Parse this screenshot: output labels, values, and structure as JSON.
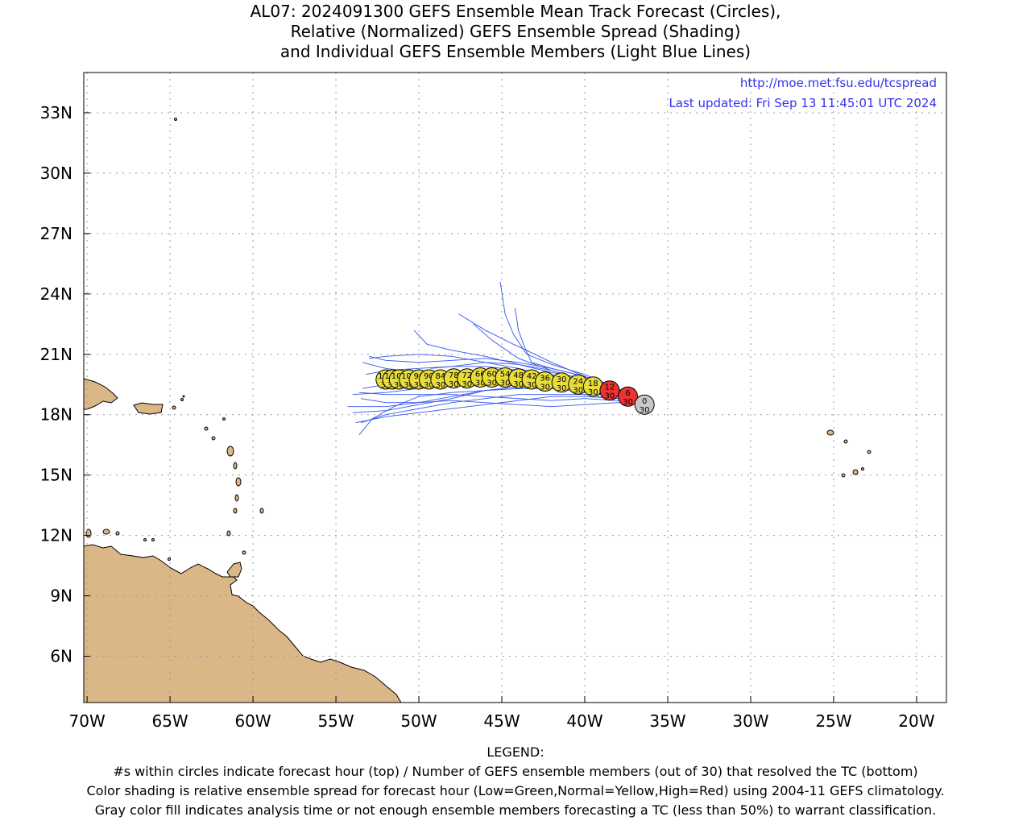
{
  "title_lines": [
    "AL07: 2024091300 GEFS Ensemble Mean Track Forecast (Circles),",
    "Relative (Normalized) GEFS Ensemble Spread (Shading)",
    "and Individual GEFS Ensemble Members (Light Blue Lines)"
  ],
  "url": "http://moe.met.fsu.edu/tcspread",
  "last_updated": "Last updated: Fri Sep 13 11:45:01 UTC 2024",
  "legend_lines": [
    "LEGEND:",
    "#s within circles indicate forecast hour (top) / Number of GEFS ensemble members (out of 30) that resolved the TC (bottom)",
    "Color shading is relative ensemble spread for forecast hour (Low=Green,Normal=Yellow,High=Red) using 2004-11 GEFS climatology.",
    "Gray color fill indicates analysis time or not enough ensemble members forecasting a TC (less than 50%) to warrant classification."
  ],
  "colors": {
    "land": "#dbb787",
    "member_line": "#3355ee",
    "gray_fill": "#c8c8c8",
    "red_fill": "#ee3333",
    "yellow_fill": "#e8dc3c",
    "url_text": "#3333ee"
  },
  "chart_data": {
    "type": "map",
    "xlim": [
      -70.2,
      -18.2
    ],
    "ylim": [
      3.7,
      35.0
    ],
    "x_ticks": [
      {
        "value": -70,
        "label": "70W"
      },
      {
        "value": -65,
        "label": "65W"
      },
      {
        "value": -60,
        "label": "60W"
      },
      {
        "value": -55,
        "label": "55W"
      },
      {
        "value": -50,
        "label": "50W"
      },
      {
        "value": -45,
        "label": "45W"
      },
      {
        "value": -40,
        "label": "40W"
      },
      {
        "value": -35,
        "label": "35W"
      },
      {
        "value": -30,
        "label": "30W"
      },
      {
        "value": -25,
        "label": "25W"
      },
      {
        "value": -20,
        "label": "20W"
      }
    ],
    "y_ticks": [
      {
        "value": 6,
        "label": "6N"
      },
      {
        "value": 9,
        "label": "9N"
      },
      {
        "value": 12,
        "label": "12N"
      },
      {
        "value": 15,
        "label": "15N"
      },
      {
        "value": 18,
        "label": "18N"
      },
      {
        "value": 21,
        "label": "21N"
      },
      {
        "value": 24,
        "label": "24N"
      },
      {
        "value": 27,
        "label": "27N"
      },
      {
        "value": 30,
        "label": "30N"
      },
      {
        "value": 33,
        "label": "33N"
      }
    ],
    "grid": true,
    "mean_track": [
      {
        "hour": "0",
        "members": "30",
        "lon": -36.4,
        "lat": 18.5,
        "fill": "gray"
      },
      {
        "hour": "6",
        "members": "30",
        "lon": -37.4,
        "lat": 18.9,
        "fill": "red"
      },
      {
        "hour": "12",
        "members": "30",
        "lon": -38.5,
        "lat": 19.2,
        "fill": "red"
      },
      {
        "hour": "18",
        "members": "30",
        "lon": -39.5,
        "lat": 19.4,
        "fill": "yellow"
      },
      {
        "hour": "24",
        "members": "30",
        "lon": -40.4,
        "lat": 19.5,
        "fill": "yellow"
      },
      {
        "hour": "30",
        "members": "30",
        "lon": -41.4,
        "lat": 19.6,
        "fill": "yellow"
      },
      {
        "hour": "36",
        "members": "30",
        "lon": -42.4,
        "lat": 19.65,
        "fill": "yellow"
      },
      {
        "hour": "42",
        "members": "30",
        "lon": -43.2,
        "lat": 19.75,
        "fill": "yellow"
      },
      {
        "hour": "48",
        "members": "30",
        "lon": -44.0,
        "lat": 19.8,
        "fill": "yellow"
      },
      {
        "hour": "54",
        "members": "30",
        "lon": -44.8,
        "lat": 19.85,
        "fill": "yellow"
      },
      {
        "hour": "60",
        "members": "30",
        "lon": -45.6,
        "lat": 19.85,
        "fill": "yellow"
      },
      {
        "hour": "66",
        "members": "30",
        "lon": -46.3,
        "lat": 19.85,
        "fill": "yellow"
      },
      {
        "hour": "72",
        "members": "30",
        "lon": -47.1,
        "lat": 19.8,
        "fill": "yellow"
      },
      {
        "hour": "78",
        "members": "30",
        "lon": -47.9,
        "lat": 19.8,
        "fill": "yellow"
      },
      {
        "hour": "84",
        "members": "30",
        "lon": -48.7,
        "lat": 19.75,
        "fill": "yellow"
      },
      {
        "hour": "90",
        "members": "30",
        "lon": -49.4,
        "lat": 19.75,
        "fill": "yellow"
      },
      {
        "hour": "96",
        "members": "30",
        "lon": -50.0,
        "lat": 19.75,
        "fill": "yellow"
      },
      {
        "hour": "102",
        "members": "30",
        "lon": -50.6,
        "lat": 19.75,
        "fill": "yellow"
      },
      {
        "hour": "108",
        "members": "30",
        "lon": -51.2,
        "lat": 19.75,
        "fill": "yellow"
      },
      {
        "hour": "114",
        "members": "30",
        "lon": -51.6,
        "lat": 19.75,
        "fill": "yellow"
      },
      {
        "hour": "120",
        "members": "30",
        "lon": -52.0,
        "lat": 19.75,
        "fill": "yellow"
      }
    ],
    "ensemble_members": [
      [
        [
          -36.4,
          18.5
        ],
        [
          -38,
          19.3
        ],
        [
          -40,
          19.9
        ],
        [
          -42,
          20.3
        ],
        [
          -44,
          20.6
        ],
        [
          -46,
          20.8
        ],
        [
          -48,
          20.7
        ],
        [
          -50,
          20.6
        ],
        [
          -52,
          20.7
        ],
        [
          -53,
          20.9
        ]
      ],
      [
        [
          -36.4,
          18.5
        ],
        [
          -38,
          19.1
        ],
        [
          -40,
          19.5
        ],
        [
          -42,
          19.8
        ],
        [
          -44,
          20.0
        ],
        [
          -46,
          20.2
        ],
        [
          -48,
          20.0
        ],
        [
          -50,
          19.8
        ],
        [
          -52,
          19.5
        ],
        [
          -53.4,
          19.3
        ]
      ],
      [
        [
          -36.4,
          18.5
        ],
        [
          -38,
          19.0
        ],
        [
          -40,
          19.2
        ],
        [
          -42,
          19.4
        ],
        [
          -44,
          19.3
        ],
        [
          -46,
          19.2
        ],
        [
          -48,
          18.9
        ],
        [
          -50,
          18.6
        ],
        [
          -52,
          18.4
        ],
        [
          -54.3,
          18.4
        ]
      ],
      [
        [
          -36.4,
          18.5
        ],
        [
          -38,
          18.8
        ],
        [
          -40,
          18.9
        ],
        [
          -42,
          18.9
        ],
        [
          -44,
          18.7
        ],
        [
          -46,
          18.5
        ],
        [
          -48,
          18.3
        ],
        [
          -50,
          18.1
        ],
        [
          -52,
          17.9
        ],
        [
          -53.8,
          17.6
        ]
      ],
      [
        [
          -36.4,
          18.5
        ],
        [
          -38,
          18.9
        ],
        [
          -40,
          19.1
        ],
        [
          -42,
          19.3
        ],
        [
          -44,
          19.3
        ],
        [
          -46,
          19.2
        ],
        [
          -48,
          19.1
        ],
        [
          -50,
          18.9
        ],
        [
          -51.5,
          18.4
        ],
        [
          -52.8,
          17.8
        ],
        [
          -53.6,
          17.0
        ]
      ],
      [
        [
          -36.4,
          18.5
        ],
        [
          -38,
          19.3
        ],
        [
          -40,
          20.0
        ],
        [
          -42,
          20.5
        ],
        [
          -43.5,
          21.0
        ],
        [
          -44.3,
          22.0
        ],
        [
          -44.8,
          23.0
        ],
        [
          -45.1,
          24.6
        ]
      ],
      [
        [
          -36.4,
          18.5
        ],
        [
          -38,
          19.2
        ],
        [
          -40,
          19.9
        ],
        [
          -42,
          20.6
        ],
        [
          -43,
          21.0
        ],
        [
          -44.3,
          21.5
        ],
        [
          -46,
          22.2
        ],
        [
          -47.6,
          23.0
        ]
      ],
      [
        [
          -36.4,
          18.5
        ],
        [
          -38,
          19.2
        ],
        [
          -40,
          19.7
        ],
        [
          -42,
          20.2
        ],
        [
          -44,
          20.8
        ],
        [
          -45.6,
          21.7
        ],
        [
          -46.7,
          22.5
        ]
      ],
      [
        [
          -36.4,
          18.5
        ],
        [
          -38,
          19.2
        ],
        [
          -40,
          19.8
        ],
        [
          -42,
          20.1
        ],
        [
          -44,
          20.5
        ],
        [
          -46,
          20.9
        ],
        [
          -48,
          21.2
        ],
        [
          -49.5,
          21.5
        ],
        [
          -50.3,
          22.2
        ]
      ],
      [
        [
          -36.4,
          18.5
        ],
        [
          -38,
          19.3
        ],
        [
          -40,
          19.9
        ],
        [
          -42,
          20.3
        ],
        [
          -43.2,
          20.6
        ],
        [
          -43.6,
          21.3
        ],
        [
          -44.0,
          22.2
        ],
        [
          -44.2,
          23.3
        ]
      ],
      [
        [
          -36.4,
          18.5
        ],
        [
          -38,
          19.0
        ],
        [
          -40,
          19.5
        ],
        [
          -42,
          19.9
        ],
        [
          -44,
          20.3
        ],
        [
          -46,
          20.6
        ],
        [
          -48,
          20.9
        ],
        [
          -50,
          21.0
        ],
        [
          -52,
          20.9
        ],
        [
          -53,
          20.8
        ]
      ],
      [
        [
          -36.4,
          18.5
        ],
        [
          -38,
          18.9
        ],
        [
          -40,
          19.3
        ],
        [
          -42,
          19.6
        ],
        [
          -44,
          19.8
        ],
        [
          -46,
          19.9
        ],
        [
          -48,
          19.9
        ],
        [
          -50,
          20.1
        ],
        [
          -52,
          20.3
        ],
        [
          -53.4,
          20.6
        ]
      ],
      [
        [
          -36.4,
          18.5
        ],
        [
          -38,
          18.7
        ],
        [
          -40,
          18.8
        ],
        [
          -42,
          18.7
        ],
        [
          -44,
          18.8
        ],
        [
          -46,
          18.9
        ],
        [
          -48,
          19.0
        ],
        [
          -50,
          19.0
        ],
        [
          -52,
          19.0
        ],
        [
          -53.6,
          19.1
        ]
      ],
      [
        [
          -36.4,
          18.5
        ],
        [
          -38,
          18.8
        ],
        [
          -40,
          19.0
        ],
        [
          -42,
          19.0
        ],
        [
          -44,
          19.0
        ],
        [
          -46,
          18.8
        ],
        [
          -48,
          18.6
        ],
        [
          -50,
          18.3
        ],
        [
          -52,
          18.0
        ],
        [
          -53.5,
          17.6
        ]
      ],
      [
        [
          -36.4,
          18.5
        ],
        [
          -38,
          19.0
        ],
        [
          -40,
          19.4
        ],
        [
          -42,
          19.6
        ],
        [
          -44,
          19.7
        ],
        [
          -46,
          19.7
        ],
        [
          -48,
          19.6
        ],
        [
          -50,
          19.3
        ],
        [
          -52,
          19.1
        ],
        [
          -54,
          19.0
        ]
      ],
      [
        [
          -36.4,
          18.5
        ],
        [
          -38,
          19.1
        ],
        [
          -40,
          19.6
        ],
        [
          -42,
          20.0
        ],
        [
          -44,
          20.2
        ],
        [
          -46,
          20.4
        ],
        [
          -48,
          20.4
        ],
        [
          -50,
          20.3
        ],
        [
          -52,
          20.2
        ],
        [
          -53.2,
          20.0
        ]
      ],
      [
        [
          -36.4,
          18.5
        ],
        [
          -38,
          18.6
        ],
        [
          -40,
          18.5
        ],
        [
          -42,
          18.4
        ],
        [
          -44,
          18.5
        ],
        [
          -46,
          18.6
        ],
        [
          -48,
          18.7
        ],
        [
          -50,
          18.6
        ],
        [
          -52,
          18.6
        ],
        [
          -53.5,
          18.8
        ]
      ],
      [
        [
          -36.4,
          18.5
        ],
        [
          -38,
          19.1
        ],
        [
          -40,
          19.7
        ],
        [
          -42,
          20.2
        ],
        [
          -44,
          20.5
        ],
        [
          -46,
          20.6
        ],
        [
          -48,
          20.4
        ],
        [
          -49.3,
          20.3
        ]
      ],
      [
        [
          -36.4,
          18.5
        ],
        [
          -38,
          19.0
        ],
        [
          -40,
          19.3
        ],
        [
          -42,
          19.5
        ],
        [
          -44,
          19.4
        ],
        [
          -46,
          19.2
        ],
        [
          -48,
          18.8
        ],
        [
          -50,
          18.5
        ],
        [
          -52,
          18.2
        ],
        [
          -54.0,
          18.1
        ]
      ]
    ]
  }
}
